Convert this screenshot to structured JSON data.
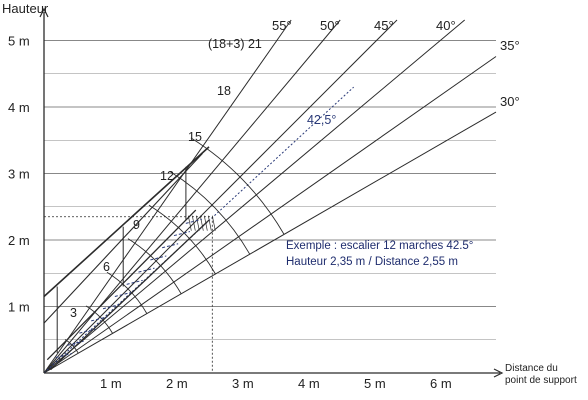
{
  "axes": {
    "y_title": "Hauteur",
    "x_title_line1": "Distance du",
    "x_title_line2": "point de support",
    "y_ticks": [
      {
        "value": 1,
        "label": "1 m"
      },
      {
        "value": 2,
        "label": "2 m"
      },
      {
        "value": 3,
        "label": "3 m"
      },
      {
        "value": 4,
        "label": "4 m"
      },
      {
        "value": 5,
        "label": "5 m"
      }
    ],
    "x_ticks": [
      {
        "value": 1,
        "label": "1 m"
      },
      {
        "value": 2,
        "label": "2 m"
      },
      {
        "value": 3,
        "label": "3 m"
      },
      {
        "value": 4,
        "label": "4 m"
      },
      {
        "value": 5,
        "label": "5 m"
      },
      {
        "value": 6,
        "label": "6 m"
      }
    ]
  },
  "angles": [
    {
      "deg": 55,
      "label": "55°"
    },
    {
      "deg": 50,
      "label": "50°"
    },
    {
      "deg": 45,
      "label": "45°"
    },
    {
      "deg": 40,
      "label": "40°"
    },
    {
      "deg": 35,
      "label": "35°"
    },
    {
      "deg": 30,
      "label": "30°"
    }
  ],
  "highlight_angle": {
    "deg": 42.5,
    "label": "42,5°"
  },
  "step_marks": [
    {
      "steps": 3,
      "label": "3"
    },
    {
      "steps": 6,
      "label": "6"
    },
    {
      "steps": 9,
      "label": "9"
    },
    {
      "steps": 12,
      "label": "12"
    },
    {
      "steps": 15,
      "label": "15"
    },
    {
      "steps": 18,
      "label": "18"
    },
    {
      "steps": 21,
      "label": "(18+3) 21"
    }
  ],
  "example": {
    "line1": "Exemple : escalier 12 marches 42.5°",
    "line2": "Hauteur 2,35 m / Distance 2,55 m",
    "height_m": 2.35,
    "distance_m": 2.55
  },
  "colors": {
    "line": "#2b2b2b",
    "grid": "#888888",
    "accent": "#2a3a78"
  }
}
